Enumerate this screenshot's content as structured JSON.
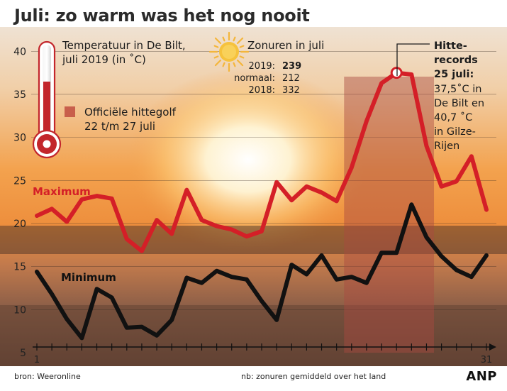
{
  "headline": "Juli: zo warm was het nog nooit",
  "source": "bron: Weeronline",
  "note": "nb: zonuren gemiddeld over het land",
  "logo": "ANP",
  "legend": {
    "thermo_title_1": "Temperatuur in De Bilt,",
    "thermo_title_2": "juli 2019 (in ˚C)",
    "heatwave_1": "Officiële hittegolf",
    "heatwave_2": "22 t/m 27 juli",
    "sun_title": "Zonuren in juli",
    "sun_rows": [
      {
        "label": "2019:",
        "value": "239"
      },
      {
        "label": "normaal:",
        "value": "212"
      },
      {
        "label": "2018:",
        "value": "332"
      }
    ]
  },
  "record_note": {
    "lines_bold": [
      "Hitte-",
      "records",
      "25 juli:"
    ],
    "lines": [
      "37,5˚C in",
      "De Bilt en",
      "40,7 ˚C",
      "in Gilze-",
      "Rijen"
    ]
  },
  "colors": {
    "max": "#d41f27",
    "min": "#111111",
    "band": "#a84a40",
    "sky_top": "#efe0cf",
    "sky_mid": "#f2a955",
    "ground": "#3a2a22"
  },
  "icons": [
    "thermometer-icon",
    "sun-icon"
  ],
  "chart_data": {
    "type": "line",
    "title": "Temperatuur in De Bilt, juli 2019 (in ˚C)",
    "x": [
      1,
      2,
      3,
      4,
      5,
      6,
      7,
      8,
      9,
      10,
      11,
      12,
      13,
      14,
      15,
      16,
      17,
      18,
      19,
      20,
      21,
      22,
      23,
      24,
      25,
      26,
      27,
      28,
      29,
      30,
      31
    ],
    "x_tick_labels": [
      "1",
      "31"
    ],
    "ylim": [
      5,
      42
    ],
    "yticks": [
      5,
      10,
      15,
      20,
      25,
      30,
      35,
      40
    ],
    "grid": true,
    "series": [
      {
        "name": "Maximum",
        "values": [
          20.9,
          21.7,
          20.2,
          22.8,
          23.2,
          22.9,
          18.2,
          16.8,
          20.4,
          18.8,
          23.9,
          20.4,
          19.7,
          19.3,
          18.5,
          19.1,
          24.8,
          22.7,
          24.3,
          23.6,
          22.6,
          26.5,
          31.9,
          36.3,
          37.5,
          37.3,
          29.0,
          24.3,
          24.9,
          27.8,
          21.6
        ]
      },
      {
        "name": "Minimum",
        "values": [
          14.4,
          11.8,
          8.9,
          6.7,
          12.4,
          11.4,
          7.9,
          8.0,
          7.0,
          8.8,
          13.7,
          13.1,
          14.5,
          13.8,
          13.5,
          11.0,
          8.8,
          15.2,
          14.1,
          16.3,
          13.5,
          13.8,
          13.1,
          16.6,
          16.6,
          22.2,
          18.4,
          16.2,
          14.6,
          13.8,
          16.3
        ]
      }
    ],
    "annotations": [
      {
        "type": "band",
        "x_start": 22,
        "x_end": 27,
        "label": "Officiële hittegolf 22 t/m 27 juli"
      },
      {
        "type": "point",
        "x": 25,
        "series": "Maximum",
        "label": "Hitte-records 25 juli"
      }
    ]
  }
}
